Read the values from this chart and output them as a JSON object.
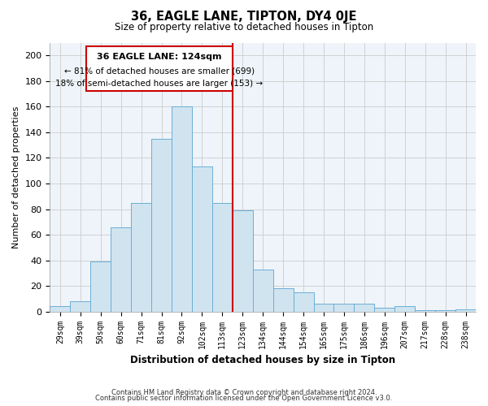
{
  "title": "36, EAGLE LANE, TIPTON, DY4 0JE",
  "subtitle": "Size of property relative to detached houses in Tipton",
  "xlabel": "Distribution of detached houses by size in Tipton",
  "ylabel": "Number of detached properties",
  "bar_color": "#d0e4f0",
  "bar_edge_color": "#6baed6",
  "categories": [
    "29sqm",
    "39sqm",
    "50sqm",
    "60sqm",
    "71sqm",
    "81sqm",
    "92sqm",
    "102sqm",
    "113sqm",
    "123sqm",
    "134sqm",
    "144sqm",
    "154sqm",
    "165sqm",
    "175sqm",
    "186sqm",
    "196sqm",
    "207sqm",
    "217sqm",
    "228sqm",
    "238sqm"
  ],
  "values": [
    4,
    8,
    39,
    66,
    85,
    135,
    160,
    113,
    85,
    79,
    33,
    18,
    15,
    6,
    6,
    6,
    3,
    4,
    1,
    1,
    2
  ],
  "vline_color": "#cc0000",
  "ylim": [
    0,
    210
  ],
  "yticks": [
    0,
    20,
    40,
    60,
    80,
    100,
    120,
    140,
    160,
    180,
    200
  ],
  "annotation_title": "36 EAGLE LANE: 124sqm",
  "annotation_line1": "← 81% of detached houses are smaller (699)",
  "annotation_line2": "18% of semi-detached houses are larger (153) →",
  "footer1": "Contains HM Land Registry data © Crown copyright and database right 2024.",
  "footer2": "Contains public sector information licensed under the Open Government Licence v3.0.",
  "background_color": "#ffffff",
  "grid_color": "#cccccc"
}
